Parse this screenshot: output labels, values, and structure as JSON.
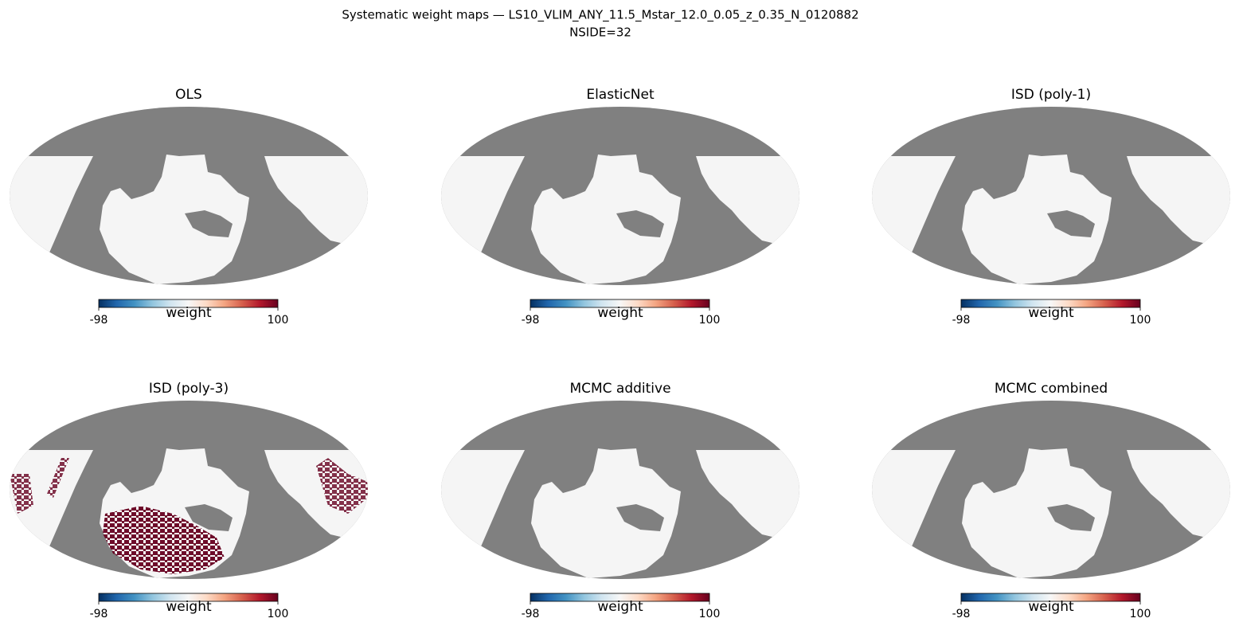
{
  "title": "Systematic weight maps — LS10_VLIM_ANY_11.5_Mstar_12.0_0.05_z_0.35_N_0120882",
  "subtitle": "NSIDE=32",
  "chart_data": [
    {
      "type": "map",
      "projection": "mollweide",
      "title": "OLS",
      "bad_color": "#808080",
      "fill_color": "#f5f5f5",
      "cmap": [
        "#053061",
        "#2166ac",
        "#4393c3",
        "#92c5de",
        "#d1e5f0",
        "#f7f7f7",
        "#fddbc7",
        "#f4a582",
        "#d6604d",
        "#b2182b",
        "#67001f"
      ],
      "colorbar": {
        "label": "weight",
        "lim": [
          -98,
          100
        ],
        "ticks": [
          -98,
          100
        ]
      }
    },
    {
      "type": "map",
      "projection": "mollweide",
      "title": "ElasticNet",
      "bad_color": "#808080",
      "fill_color": "#f5f5f5",
      "cmap": [
        "#053061",
        "#2166ac",
        "#4393c3",
        "#92c5de",
        "#d1e5f0",
        "#f7f7f7",
        "#fddbc7",
        "#f4a582",
        "#d6604d",
        "#b2182b",
        "#67001f"
      ],
      "colorbar": {
        "label": "weight",
        "lim": [
          -98,
          100
        ],
        "ticks": [
          -98,
          100
        ]
      }
    },
    {
      "type": "map",
      "projection": "mollweide",
      "title": "ISD (poly-1)",
      "bad_color": "#808080",
      "fill_color": "#f5f5f5",
      "cmap": [
        "#053061",
        "#2166ac",
        "#4393c3",
        "#92c5de",
        "#d1e5f0",
        "#f7f7f7",
        "#fddbc7",
        "#f4a582",
        "#d6604d",
        "#b2182b",
        "#67001f"
      ],
      "colorbar": {
        "label": "weight",
        "lim": [
          -98,
          100
        ],
        "ticks": [
          -98,
          100
        ]
      }
    },
    {
      "type": "map",
      "projection": "mollweide",
      "title": "ISD (poly-3)",
      "bad_color": "#808080",
      "fill_color": "#f5f5f5",
      "cmap": [
        "#053061",
        "#2166ac",
        "#4393c3",
        "#92c5de",
        "#d1e5f0",
        "#f7f7f7",
        "#fddbc7",
        "#f4a582",
        "#d6604d",
        "#b2182b",
        "#67001f"
      ],
      "colorbar": {
        "label": "weight",
        "lim": [
          -98,
          100
        ],
        "ticks": [
          -98,
          100
        ]
      }
    },
    {
      "type": "map",
      "projection": "mollweide",
      "title": "MCMC additive",
      "bad_color": "#808080",
      "fill_color": "#f5f5f5",
      "cmap": [
        "#053061",
        "#2166ac",
        "#4393c3",
        "#92c5de",
        "#d1e5f0",
        "#f7f7f7",
        "#fddbc7",
        "#f4a582",
        "#d6604d",
        "#b2182b",
        "#67001f"
      ],
      "colorbar": {
        "label": "weight",
        "lim": [
          -98,
          100
        ],
        "ticks": [
          -98,
          100
        ]
      }
    },
    {
      "type": "map",
      "projection": "mollweide",
      "title": "MCMC combined",
      "bad_color": "#808080",
      "fill_color": "#f5f5f5",
      "cmap": [
        "#053061",
        "#2166ac",
        "#4393c3",
        "#92c5de",
        "#d1e5f0",
        "#f7f7f7",
        "#fddbc7",
        "#f4a582",
        "#d6604d",
        "#b2182b",
        "#67001f"
      ],
      "colorbar": {
        "label": "weight",
        "lim": [
          -98,
          100
        ],
        "ticks": [
          -98,
          100
        ]
      }
    }
  ]
}
